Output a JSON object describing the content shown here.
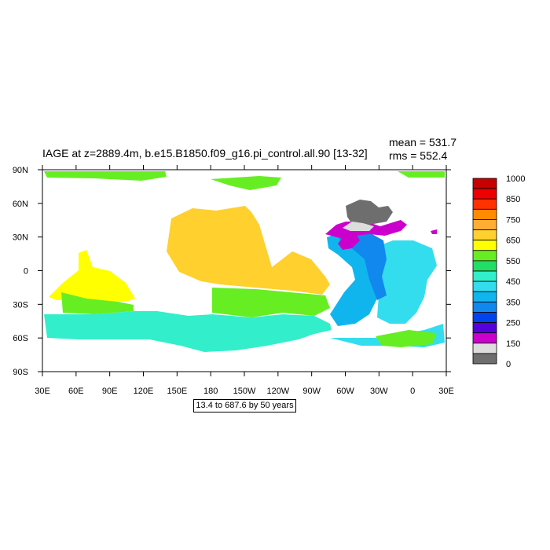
{
  "figure": {
    "title": "IAGE at z=2889.4m, b.e15.B1850.f09_g16.pi_control.all.90 [13-32]",
    "stats": {
      "mean": "mean = 531.7",
      "rms": "rms = 552.4"
    },
    "range_note": "13.4 to 687.6 by 50 years"
  },
  "map": {
    "projection": "cylindrical equidistant",
    "lon_range": [
      "30E",
      "30E"
    ],
    "x_ticks": [
      "30E",
      "60E",
      "90E",
      "120E",
      "150E",
      "180",
      "150W",
      "120W",
      "90W",
      "60W",
      "30W",
      "0",
      "30E"
    ],
    "y_ticks": [
      "90N",
      "60N",
      "30N",
      "0",
      "30S",
      "60S",
      "90S"
    ]
  },
  "colorbar": {
    "labels": [
      "1000",
      "850",
      "750",
      "650",
      "550",
      "450",
      "350",
      "250",
      "150",
      "0"
    ],
    "colors": [
      "#c80000",
      "#ee0000",
      "#ff3200",
      "#ff8c00",
      "#ffad33",
      "#ffd02e",
      "#ffff00",
      "#66ee22",
      "#22dd66",
      "#33eeca",
      "#33ddee",
      "#11b5ee",
      "#1188ee",
      "#0044ee",
      "#5500dd",
      "#cc00cc",
      "#dddddd",
      "#6e6e6e"
    ]
  },
  "regions": {
    "north_pacific": "#ffd02e",
    "indian_ocean": "#ffff00",
    "south_band": "#66ee22",
    "southern_ocean": "#33eeca",
    "atlantic_west": "#11b5ee",
    "atlantic_east": "#33ddee",
    "nadw_core": "#1188ee",
    "labrador": "#cc00cc",
    "nordic": "#6e6e6e"
  }
}
